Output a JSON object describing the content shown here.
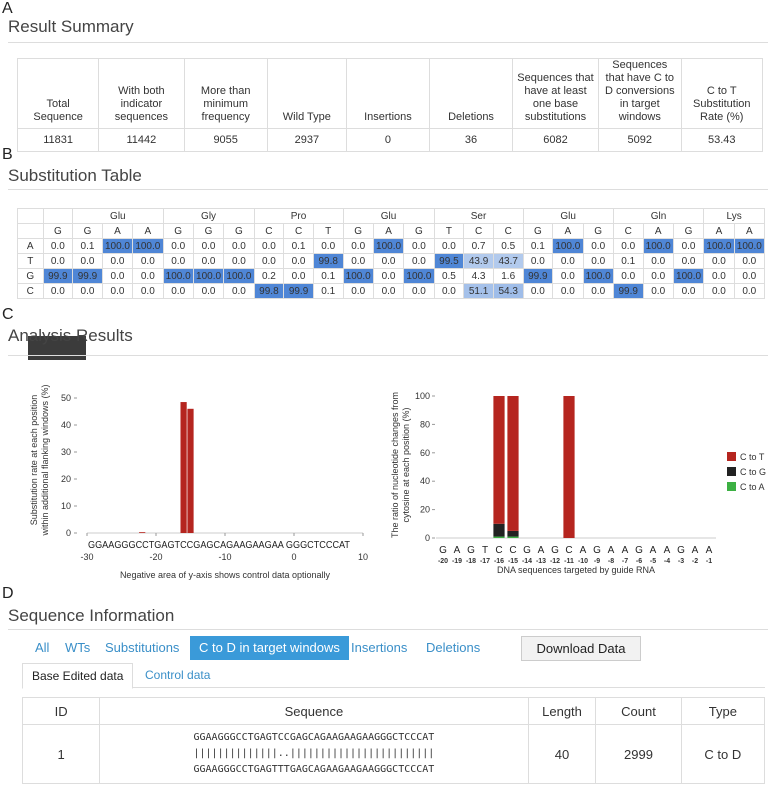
{
  "result_summary": {
    "label": "A",
    "title": "Result Summary",
    "headers": [
      "Total Sequence",
      "With both indicator sequences",
      "More than minimum frequency",
      "Wild Type",
      "Insertions",
      "Deletions",
      "Sequences that have at least one base substitutions",
      "Sequences that have C to D conversions in target windows",
      "C to T Substitution Rate (%)"
    ],
    "values": [
      11831,
      11442,
      9055,
      2937,
      0,
      36,
      6082,
      5092,
      53.43
    ]
  },
  "substitution_table": {
    "label": "B",
    "title": "Substitution Table",
    "codons": [
      {
        "amino_acid": null,
        "bases": [
          "G"
        ]
      },
      {
        "amino_acid": "Glu",
        "bases": [
          "G",
          "A",
          "A"
        ]
      },
      {
        "amino_acid": "Gly",
        "bases": [
          "G",
          "G",
          "G"
        ]
      },
      {
        "amino_acid": "Pro",
        "bases": [
          "C",
          "C",
          "T"
        ]
      },
      {
        "amino_acid": "Glu",
        "bases": [
          "G",
          "A",
          "G"
        ]
      },
      {
        "amino_acid": "Ser",
        "bases": [
          "T",
          "C",
          "C"
        ]
      },
      {
        "amino_acid": "Glu",
        "bases": [
          "G",
          "A",
          "G"
        ]
      },
      {
        "amino_acid": "Gln",
        "bases": [
          "C",
          "A",
          "G"
        ]
      },
      {
        "amino_acid": "Lys",
        "bases": [
          "A",
          "A"
        ]
      }
    ],
    "rows": [
      {
        "base": "A",
        "values": [
          "0.0",
          "0.1",
          "100.0",
          "100.0",
          "0.0",
          "0.0",
          "0.0",
          "0.0",
          "0.1",
          "0.0",
          "0.0",
          "100.0",
          "0.0",
          "0.0",
          "0.7",
          "0.5",
          "0.1",
          "100.0",
          "0.0",
          "0.0",
          "100.0",
          "0.0",
          "100.0",
          "100.0"
        ]
      },
      {
        "base": "T",
        "values": [
          "0.0",
          "0.0",
          "0.0",
          "0.0",
          "0.0",
          "0.0",
          "0.0",
          "0.0",
          "0.0",
          "99.8",
          "0.0",
          "0.0",
          "0.0",
          "99.5",
          "43.9",
          "43.7",
          "0.0",
          "0.0",
          "0.0",
          "0.1",
          "0.0",
          "0.0",
          "0.0",
          "0.0"
        ]
      },
      {
        "base": "G",
        "values": [
          "99.9",
          "99.9",
          "0.0",
          "0.0",
          "100.0",
          "100.0",
          "100.0",
          "0.2",
          "0.0",
          "0.1",
          "100.0",
          "0.0",
          "100.0",
          "0.5",
          "4.3",
          "1.6",
          "99.9",
          "0.0",
          "100.0",
          "0.0",
          "0.0",
          "100.0",
          "0.0",
          "0.0"
        ]
      },
      {
        "base": "C",
        "values": [
          "0.0",
          "0.0",
          "0.0",
          "0.0",
          "0.0",
          "0.0",
          "0.0",
          "99.8",
          "99.9",
          "0.1",
          "0.0",
          "0.0",
          "0.0",
          "0.0",
          "51.1",
          "54.3",
          "0.0",
          "0.0",
          "0.0",
          "99.9",
          "0.0",
          "0.0",
          "0.0",
          "0.0"
        ]
      }
    ]
  },
  "analysis_results": {
    "label": "C",
    "title": "Analysis Results"
  },
  "chart_data": [
    {
      "type": "bar",
      "y_label": [
        "Substitution rate at each position",
        "within additional flanking windows (%)"
      ],
      "x_label": "Negative area of y-axis shows control data optionally",
      "sequence": "GGAAGGGCCTGAGTCCGAGCAGAAGAAGAA GGGCTCCCAT",
      "x": [
        -22,
        -16,
        -15
      ],
      "values": [
        0.3,
        48.5,
        46
      ],
      "color": "#b5251f",
      "xlim": [
        -30,
        10
      ],
      "ylim": [
        0,
        55
      ],
      "xticks": [
        -30,
        -20,
        -10,
        0,
        10
      ],
      "yticks": [
        0,
        10,
        20,
        30,
        40,
        50
      ]
    },
    {
      "type": "stacked_bar",
      "y_label": [
        "The ratio of nucleotide changes from",
        "cytosine at each position (%)"
      ],
      "x_label": "DNA sequences targeted by guide RNA",
      "categories": [
        "G",
        "A",
        "G",
        "T",
        "C",
        "C",
        "G",
        "A",
        "G",
        "C",
        "A",
        "G",
        "A",
        "A",
        "G",
        "A",
        "A",
        "G",
        "A",
        "A"
      ],
      "positions": [
        -20,
        -19,
        -18,
        -17,
        -16,
        -15,
        -14,
        -13,
        -12,
        -11,
        -10,
        -9,
        -8,
        -7,
        -6,
        -5,
        -4,
        -3,
        -2,
        -1
      ],
      "series": [
        {
          "name": "C to T",
          "color": "#b5251f",
          "values": [
            null,
            null,
            null,
            null,
            90,
            95,
            null,
            null,
            null,
            100,
            null,
            null,
            null,
            null,
            null,
            null,
            null,
            null,
            null,
            null
          ]
        },
        {
          "name": "C to G",
          "color": "#222222",
          "values": [
            null,
            null,
            null,
            null,
            9,
            4,
            null,
            null,
            null,
            0,
            null,
            null,
            null,
            null,
            null,
            null,
            null,
            null,
            null,
            null
          ]
        },
        {
          "name": "C to A",
          "color": "#3cb043",
          "values": [
            null,
            null,
            null,
            null,
            1,
            1,
            null,
            null,
            null,
            0,
            null,
            null,
            null,
            null,
            null,
            null,
            null,
            null,
            null,
            null
          ]
        }
      ],
      "ylim": [
        0,
        100
      ],
      "yticks": [
        0,
        20,
        40,
        60,
        80,
        100
      ],
      "legend": "right"
    }
  ],
  "sequence_information": {
    "label": "D",
    "title": "Sequence Information",
    "tabs": [
      "All",
      "WTs",
      "Substitutions",
      "C to D in target windows",
      "Insertions",
      "Deletions"
    ],
    "active_tab": 3,
    "download_button": "Download Data",
    "subtabs": [
      "Base Edited data",
      "Control data"
    ],
    "active_subtab": 0,
    "table": {
      "headers": [
        "ID",
        "Sequence",
        "Length",
        "Count",
        "Type"
      ],
      "rows": [
        {
          "id": 1,
          "sequence": [
            "GGAAGGGCCTGAGTCCGAGCAGAAGAAGAAGGGCTCCCAT",
            "||||||||||||||..||||||||||||||||||||||||",
            "GGAAGGGCCTGAGTTTGAGCAGAAGAAGAAGGGCTCCCAT"
          ],
          "length": 40,
          "count": 2999,
          "type": "C to D"
        }
      ]
    }
  }
}
